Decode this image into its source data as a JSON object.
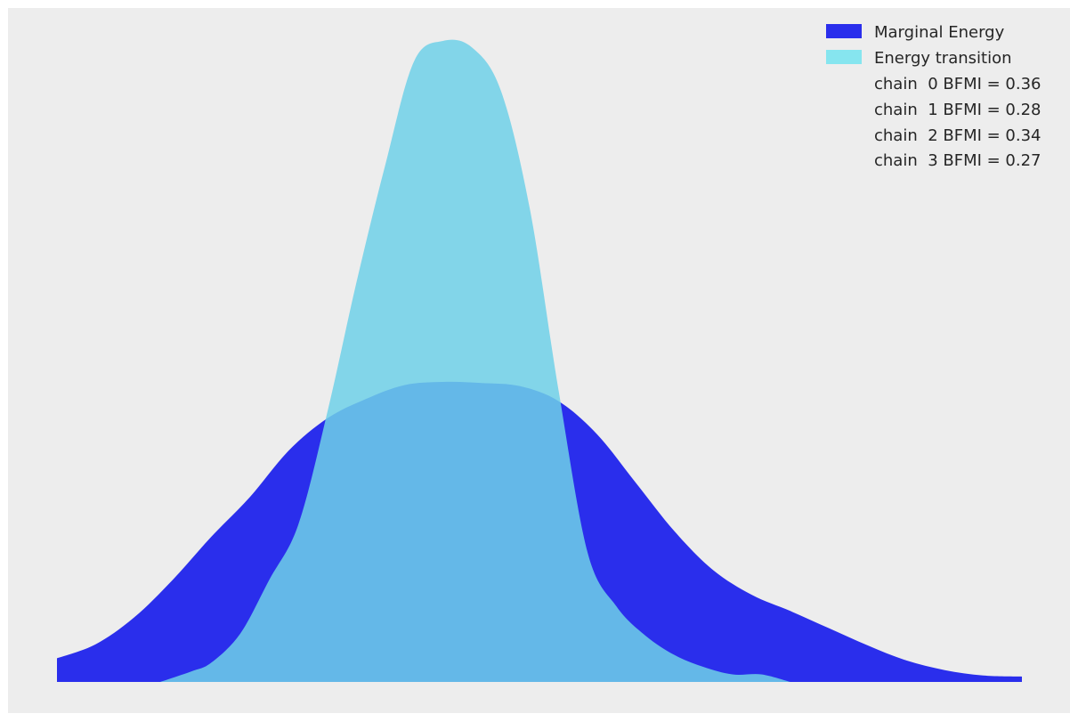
{
  "chart_data": {
    "type": "area",
    "title": "",
    "xlabel": "",
    "ylabel": "",
    "grid": false,
    "axes_visible": false,
    "legend_position": "top-right",
    "background_color": "#EDEDED",
    "xlim": [
      -4.2,
      5.8
    ],
    "ylim": [
      0,
      0.6
    ],
    "series": [
      {
        "name": "Marginal Energy",
        "color": "#2A2EEC",
        "opacity": 1.0,
        "x": [
          -4.0,
          -3.6,
          -3.2,
          -2.8,
          -2.4,
          -2.0,
          -1.6,
          -1.2,
          -0.8,
          -0.4,
          0.0,
          0.4,
          0.8,
          1.2,
          1.6,
          2.0,
          2.4,
          2.8,
          3.2,
          3.6,
          4.0,
          4.4,
          4.8,
          5.2,
          5.6,
          6.0
        ],
        "y": [
          0.022,
          0.035,
          0.06,
          0.095,
          0.135,
          0.172,
          0.215,
          0.245,
          0.263,
          0.276,
          0.279,
          0.278,
          0.275,
          0.261,
          0.23,
          0.185,
          0.14,
          0.104,
          0.081,
          0.066,
          0.05,
          0.034,
          0.02,
          0.011,
          0.006,
          0.005
        ]
      },
      {
        "name": "Energy transition",
        "color": "#6ED0E8",
        "opacity": 0.85,
        "x": [
          -2.93,
          -2.6,
          -2.4,
          -2.1,
          -1.8,
          -1.5,
          -1.2,
          -0.9,
          -0.6,
          -0.3,
          0.0,
          0.3,
          0.6,
          0.9,
          1.2,
          1.5,
          1.8,
          2.1,
          2.4,
          2.7,
          3.0,
          3.3,
          3.6
        ],
        "y": [
          0.0,
          0.01,
          0.018,
          0.045,
          0.095,
          0.146,
          0.25,
          0.37,
          0.48,
          0.577,
          0.596,
          0.59,
          0.55,
          0.44,
          0.27,
          0.12,
          0.07,
          0.043,
          0.025,
          0.014,
          0.007,
          0.007,
          0.0
        ]
      }
    ],
    "legend_extra": [
      "chain  0 BFMI = 0.36",
      "chain  1 BFMI = 0.28",
      "chain  2 BFMI = 0.34",
      "chain  3 BFMI = 0.27"
    ]
  }
}
